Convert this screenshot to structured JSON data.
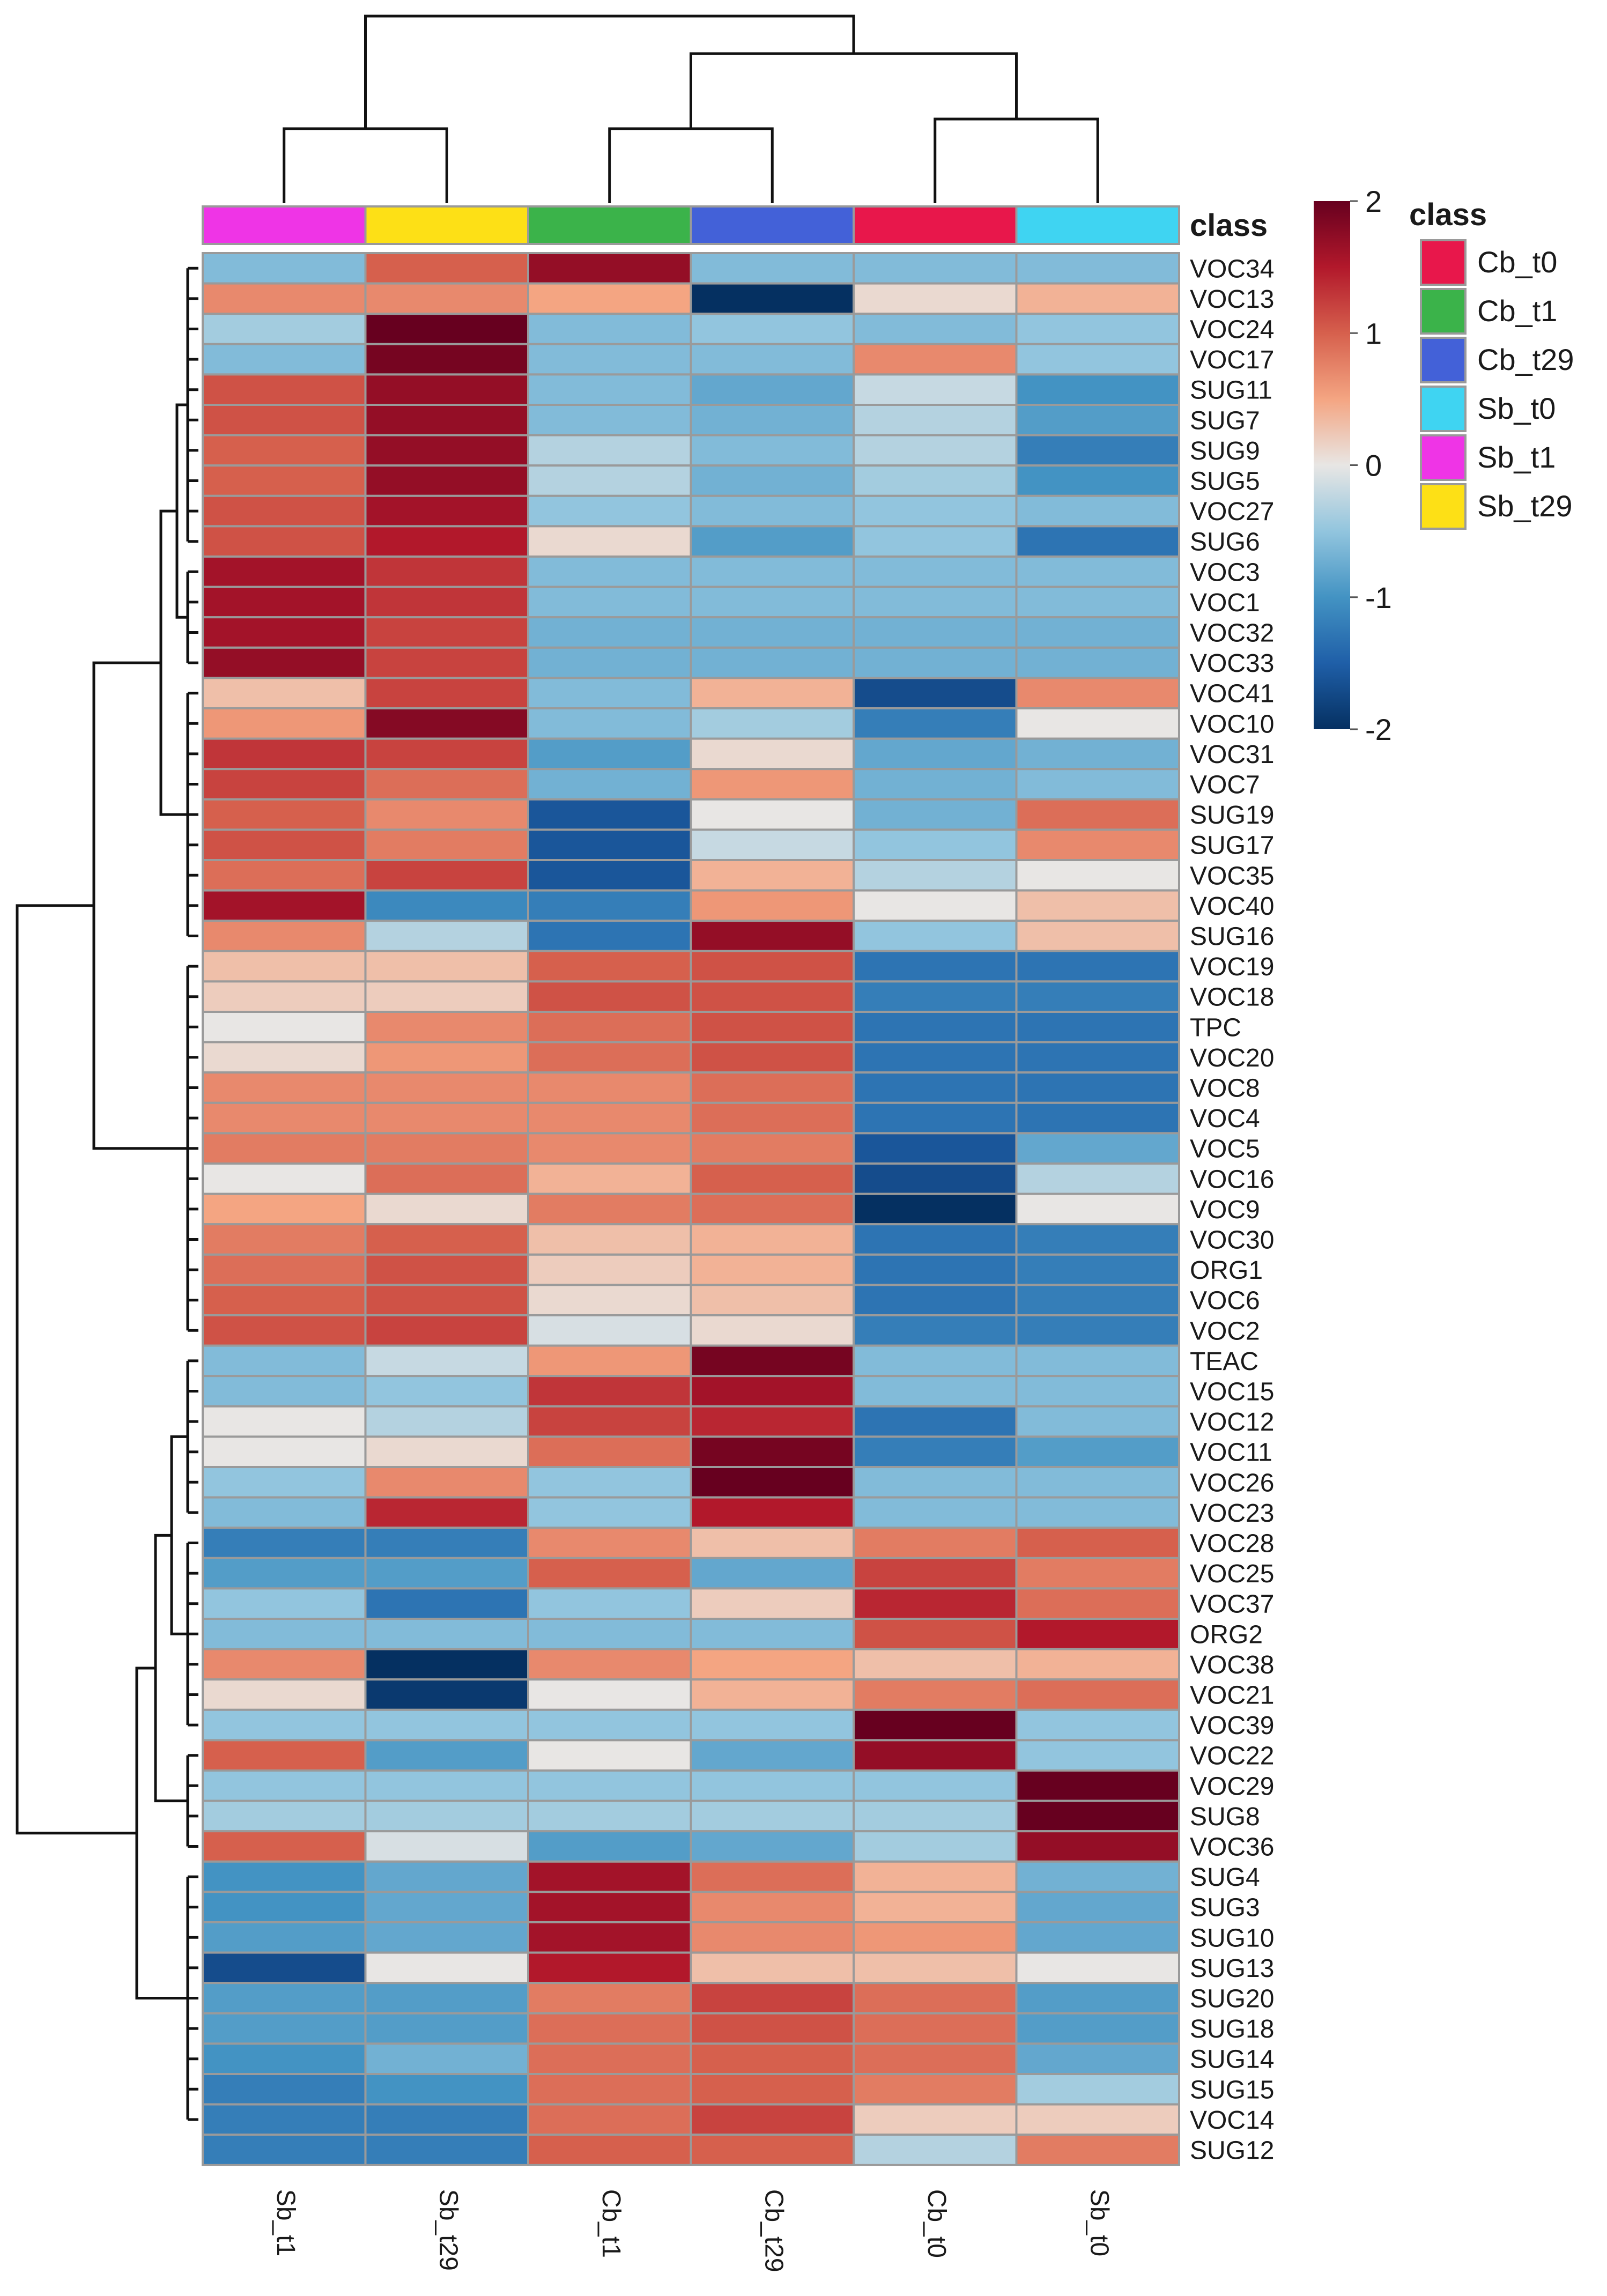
{
  "chart_data": {
    "type": "heatmap",
    "title": "",
    "columns": [
      "Sb_t1",
      "Sb_t29",
      "Cb_t1",
      "Cb_t29",
      "Cb_t0",
      "Sb_t0"
    ],
    "column_classes": [
      "Sb_t1",
      "Sb_t29",
      "Cb_t1",
      "Cb_t29",
      "Cb_t0",
      "Sb_t0"
    ],
    "class_annotation_label": "class",
    "rows": [
      {
        "name": "VOC34",
        "values": [
          -0.6,
          1.0,
          1.7,
          -0.6,
          -0.6,
          -0.6
        ]
      },
      {
        "name": "VOC13",
        "values": [
          0.7,
          0.7,
          0.5,
          -2.0,
          0.1,
          0.4
        ]
      },
      {
        "name": "VOC24",
        "values": [
          -0.4,
          2.0,
          -0.6,
          -0.5,
          -0.6,
          -0.5
        ]
      },
      {
        "name": "VOC17",
        "values": [
          -0.6,
          1.9,
          -0.6,
          -0.6,
          0.7,
          -0.5
        ]
      },
      {
        "name": "SUG11",
        "values": [
          1.1,
          1.7,
          -0.6,
          -0.8,
          -0.2,
          -1.0
        ]
      },
      {
        "name": "SUG7",
        "values": [
          1.1,
          1.7,
          -0.6,
          -0.7,
          -0.3,
          -0.9
        ]
      },
      {
        "name": "SUG9",
        "values": [
          1.0,
          1.7,
          -0.3,
          -0.6,
          -0.3,
          -1.2
        ]
      },
      {
        "name": "SUG5",
        "values": [
          1.0,
          1.7,
          -0.3,
          -0.7,
          -0.4,
          -1.0
        ]
      },
      {
        "name": "VOC27",
        "values": [
          1.1,
          1.6,
          -0.5,
          -0.6,
          -0.5,
          -0.6
        ]
      },
      {
        "name": "SUG6",
        "values": [
          1.1,
          1.5,
          0.1,
          -0.9,
          -0.5,
          -1.3
        ]
      },
      {
        "name": "VOC3",
        "values": [
          1.6,
          1.3,
          -0.6,
          -0.6,
          -0.6,
          -0.6
        ]
      },
      {
        "name": "VOC1",
        "values": [
          1.6,
          1.3,
          -0.6,
          -0.6,
          -0.6,
          -0.6
        ]
      },
      {
        "name": "VOC32",
        "values": [
          1.6,
          1.2,
          -0.7,
          -0.7,
          -0.7,
          -0.7
        ]
      },
      {
        "name": "VOC33",
        "values": [
          1.7,
          1.2,
          -0.7,
          -0.7,
          -0.7,
          -0.7
        ]
      },
      {
        "name": "VOC41",
        "values": [
          0.3,
          1.2,
          -0.6,
          0.4,
          -1.7,
          0.7
        ]
      },
      {
        "name": "VOC10",
        "values": [
          0.6,
          1.8,
          -0.6,
          -0.4,
          -1.2,
          0.0
        ]
      },
      {
        "name": "VOC31",
        "values": [
          1.3,
          1.2,
          -0.9,
          0.1,
          -0.8,
          -0.7
        ]
      },
      {
        "name": "VOC7",
        "values": [
          1.2,
          0.9,
          -0.7,
          0.6,
          -0.7,
          -0.6
        ]
      },
      {
        "name": "SUG19",
        "values": [
          1.0,
          0.7,
          -1.6,
          0.0,
          -0.7,
          0.9
        ]
      },
      {
        "name": "SUG17",
        "values": [
          1.1,
          0.8,
          -1.6,
          -0.2,
          -0.5,
          0.7
        ]
      },
      {
        "name": "VOC35",
        "values": [
          0.9,
          1.2,
          -1.6,
          0.4,
          -0.3,
          0.0
        ]
      },
      {
        "name": "VOC40",
        "values": [
          1.6,
          -1.1,
          -1.2,
          0.6,
          0.0,
          0.3
        ]
      },
      {
        "name": "SUG16",
        "values": [
          0.7,
          -0.3,
          -1.3,
          1.7,
          -0.5,
          0.3
        ]
      },
      {
        "name": "VOC19",
        "values": [
          0.3,
          0.3,
          1.0,
          1.1,
          -1.3,
          -1.3
        ]
      },
      {
        "name": "VOC18",
        "values": [
          0.2,
          0.2,
          1.1,
          1.1,
          -1.2,
          -1.2
        ]
      },
      {
        "name": "TPC",
        "values": [
          0.0,
          0.7,
          0.9,
          1.1,
          -1.3,
          -1.3
        ]
      },
      {
        "name": "VOC20",
        "values": [
          0.1,
          0.6,
          0.9,
          1.1,
          -1.3,
          -1.3
        ]
      },
      {
        "name": "VOC8",
        "values": [
          0.7,
          0.7,
          0.7,
          0.9,
          -1.3,
          -1.3
        ]
      },
      {
        "name": "VOC4",
        "values": [
          0.7,
          0.7,
          0.7,
          0.9,
          -1.3,
          -1.3
        ]
      },
      {
        "name": "VOC5",
        "values": [
          0.8,
          0.8,
          0.7,
          0.8,
          -1.6,
          -0.8
        ]
      },
      {
        "name": "VOC16",
        "values": [
          0.0,
          0.9,
          0.4,
          1.0,
          -1.7,
          -0.3
        ]
      },
      {
        "name": "VOC9",
        "values": [
          0.5,
          0.1,
          0.8,
          0.9,
          -2.0,
          0.0
        ]
      },
      {
        "name": "VOC30",
        "values": [
          0.8,
          1.0,
          0.3,
          0.4,
          -1.3,
          -1.2
        ]
      },
      {
        "name": "ORG1",
        "values": [
          0.9,
          1.1,
          0.2,
          0.4,
          -1.3,
          -1.2
        ]
      },
      {
        "name": "VOC6",
        "values": [
          1.0,
          1.1,
          0.1,
          0.3,
          -1.3,
          -1.2
        ]
      },
      {
        "name": "VOC2",
        "values": [
          1.1,
          1.2,
          -0.1,
          0.1,
          -1.2,
          -1.2
        ]
      },
      {
        "name": "TEAC",
        "values": [
          -0.6,
          -0.2,
          0.6,
          1.9,
          -0.6,
          -0.6
        ]
      },
      {
        "name": "VOC15",
        "values": [
          -0.6,
          -0.5,
          1.3,
          1.6,
          -0.6,
          -0.6
        ]
      },
      {
        "name": "VOC12",
        "values": [
          0.0,
          -0.3,
          1.2,
          1.4,
          -1.3,
          -0.6
        ]
      },
      {
        "name": "VOC11",
        "values": [
          0.0,
          0.1,
          0.9,
          1.9,
          -1.2,
          -0.9
        ]
      },
      {
        "name": "VOC26",
        "values": [
          -0.5,
          0.7,
          -0.5,
          2.0,
          -0.6,
          -0.6
        ]
      },
      {
        "name": "VOC23",
        "values": [
          -0.6,
          1.4,
          -0.5,
          1.5,
          -0.6,
          -0.6
        ]
      },
      {
        "name": "VOC28",
        "values": [
          -1.2,
          -1.2,
          0.7,
          0.3,
          0.8,
          1.0
        ]
      },
      {
        "name": "VOC25",
        "values": [
          -0.9,
          -0.9,
          1.0,
          -0.8,
          1.2,
          0.8
        ]
      },
      {
        "name": "VOC37",
        "values": [
          -0.5,
          -1.3,
          -0.5,
          0.2,
          1.4,
          0.9
        ]
      },
      {
        "name": "ORG2",
        "values": [
          -0.6,
          -0.6,
          -0.6,
          -0.6,
          1.1,
          1.5
        ]
      },
      {
        "name": "VOC38",
        "values": [
          0.7,
          -2.0,
          0.7,
          0.5,
          0.3,
          0.4
        ]
      },
      {
        "name": "VOC21",
        "values": [
          0.1,
          -1.9,
          0.0,
          0.4,
          0.8,
          0.9
        ]
      },
      {
        "name": "VOC39",
        "values": [
          -0.5,
          -0.5,
          -0.5,
          -0.5,
          2.0,
          -0.5
        ]
      },
      {
        "name": "VOC22",
        "values": [
          1.0,
          -0.9,
          0.0,
          -0.8,
          1.7,
          -0.5
        ]
      },
      {
        "name": "VOC29",
        "values": [
          -0.5,
          -0.5,
          -0.5,
          -0.5,
          -0.5,
          2.0
        ]
      },
      {
        "name": "SUG8",
        "values": [
          -0.4,
          -0.4,
          -0.4,
          -0.4,
          -0.4,
          2.1
        ]
      },
      {
        "name": "VOC36",
        "values": [
          1.0,
          -0.1,
          -0.9,
          -0.8,
          -0.4,
          1.7
        ]
      },
      {
        "name": "SUG4",
        "values": [
          -1.0,
          -0.8,
          1.6,
          0.9,
          0.4,
          -0.7
        ]
      },
      {
        "name": "SUG3",
        "values": [
          -1.0,
          -0.8,
          1.6,
          0.7,
          0.4,
          -0.8
        ]
      },
      {
        "name": "SUG10",
        "values": [
          -0.9,
          -0.8,
          1.6,
          0.7,
          0.6,
          -0.8
        ]
      },
      {
        "name": "SUG13",
        "values": [
          -1.7,
          0.0,
          1.5,
          0.3,
          0.3,
          0.0
        ]
      },
      {
        "name": "SUG20",
        "values": [
          -0.9,
          -0.9,
          0.8,
          1.2,
          0.9,
          -0.9
        ]
      },
      {
        "name": "SUG18",
        "values": [
          -0.9,
          -0.9,
          0.9,
          1.1,
          0.9,
          -0.9
        ]
      },
      {
        "name": "SUG14",
        "values": [
          -1.0,
          -0.7,
          0.9,
          1.0,
          0.9,
          -0.8
        ]
      },
      {
        "name": "SUG15",
        "values": [
          -1.2,
          -1.0,
          0.9,
          1.0,
          0.8,
          -0.4
        ]
      },
      {
        "name": "VOC14",
        "values": [
          -1.2,
          -1.2,
          0.9,
          1.2,
          0.2,
          0.2
        ]
      },
      {
        "name": "SUG12",
        "values": [
          -1.2,
          -1.2,
          1.0,
          1.0,
          -0.3,
          0.8
        ]
      }
    ],
    "color_scale": {
      "min": -2,
      "max": 2,
      "ticks": [
        2,
        1,
        0,
        -1,
        -2
      ],
      "tick_labels": [
        "2",
        "1",
        "0",
        "-1",
        "-2"
      ],
      "stops": [
        {
          "value": -2,
          "color": "#053061"
        },
        {
          "value": -1.5,
          "color": "#1f5fa8"
        },
        {
          "value": -1,
          "color": "#4393c3"
        },
        {
          "value": -0.5,
          "color": "#92c5de"
        },
        {
          "value": 0,
          "color": "#e8e6e4"
        },
        {
          "value": 0.5,
          "color": "#f4a582"
        },
        {
          "value": 1,
          "color": "#d6604d"
        },
        {
          "value": 1.5,
          "color": "#b2182b"
        },
        {
          "value": 2,
          "color": "#67001f"
        }
      ]
    },
    "legend": {
      "title": "class",
      "placement": "right",
      "entries": [
        {
          "label": "Cb_t0",
          "color": "#e8174b"
        },
        {
          "label": "Cb_t1",
          "color": "#3bb34a"
        },
        {
          "label": "Cb_t29",
          "color": "#4361d8"
        },
        {
          "label": "Sb_t0",
          "color": "#3fd4f2"
        },
        {
          "label": "Sb_t1",
          "color": "#ef34e6"
        },
        {
          "label": "Sb_t29",
          "color": "#fde016"
        }
      ]
    },
    "column_dendrogram_order": "((Sb_t1,Sb_t29),((Cb_t1,Cb_t29),(Cb_t0,Sb_t0)))",
    "row_dendrogram": "hierarchical clustering on rows (shown at left)"
  }
}
